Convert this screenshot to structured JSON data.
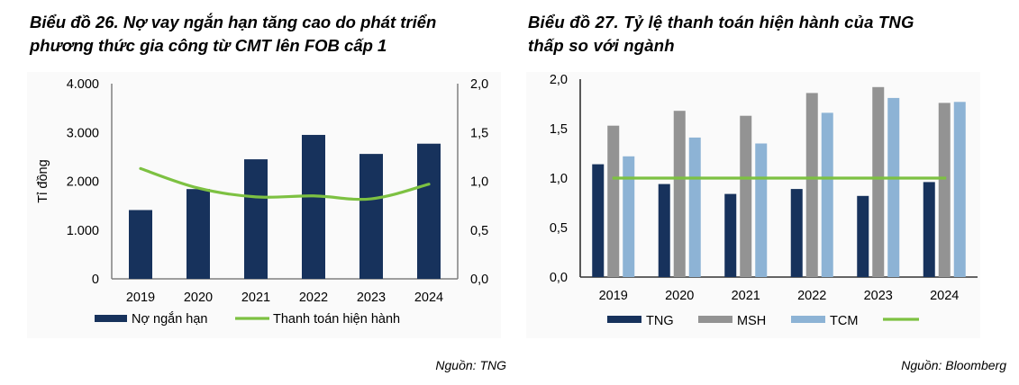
{
  "chart_data": [
    {
      "type": "bar+line",
      "title": "Biểu đồ 26. Nợ vay ngắn hạn tăng cao do phát triển phương thức gia công từ CMT lên FOB cấp 1",
      "title_lines": [
        "Biểu đồ 26. Nợ vay ngắn hạn tăng cao do phát triển",
        "phương thức gia công từ CMT lên FOB cấp 1"
      ],
      "categories": [
        "2019",
        "2020",
        "2021",
        "2022",
        "2023",
        "2024"
      ],
      "xlabel": "",
      "ylabel": "Tỉ đồng",
      "ylim": [
        0,
        4000
      ],
      "yticks": [
        "0",
        "1.000",
        "2.000",
        "3.000",
        "4.000"
      ],
      "y2lim": [
        0,
        2.0
      ],
      "y2ticks": [
        "0,0",
        "0,5",
        "1,0",
        "1,5",
        "2,0"
      ],
      "grid": false,
      "legend_position": "bottom",
      "series": [
        {
          "name": "Nợ ngắn hạn",
          "type": "bar",
          "axis": "left",
          "color": "#17325c",
          "values": [
            1410,
            1840,
            2450,
            2950,
            2560,
            2770
          ]
        },
        {
          "name": "Thanh toán hiện hành",
          "type": "line",
          "axis": "right",
          "color": "#7dc142",
          "values": [
            1.13,
            0.93,
            0.84,
            0.85,
            0.82,
            0.97
          ]
        }
      ],
      "source": "Nguồn: TNG"
    },
    {
      "type": "bar",
      "title": "Biểu đồ 27. Tỷ lệ thanh toán hiện hành của TNG thấp so với ngành",
      "title_lines": [
        "Biểu đồ 27. Tỷ lệ thanh toán hiện hành của TNG",
        "thấp so với ngành"
      ],
      "categories": [
        "2019",
        "2020",
        "2021",
        "2022",
        "2023",
        "2024"
      ],
      "xlabel": "",
      "ylabel": "",
      "ylim": [
        0,
        2.0
      ],
      "yticks": [
        "0,0",
        "0,5",
        "1,0",
        "1,5",
        "2,0"
      ],
      "grid": false,
      "legend_position": "bottom",
      "series": [
        {
          "name": "TNG",
          "type": "bar",
          "color": "#17325c",
          "values": [
            1.14,
            0.94,
            0.84,
            0.89,
            0.82,
            0.96
          ]
        },
        {
          "name": "MSH",
          "type": "bar",
          "color": "#939393",
          "values": [
            1.53,
            1.68,
            1.63,
            1.86,
            1.92,
            1.76
          ]
        },
        {
          "name": "TCM",
          "type": "bar",
          "color": "#8db3d5",
          "values": [
            1.22,
            1.41,
            1.35,
            1.66,
            1.81,
            1.77
          ]
        },
        {
          "name": "",
          "type": "line",
          "color": "#7dc142",
          "values": [
            1.0,
            1.0,
            1.0,
            1.0,
            1.0,
            1.0
          ]
        }
      ],
      "source": "Nguồn: Bloomberg"
    }
  ]
}
